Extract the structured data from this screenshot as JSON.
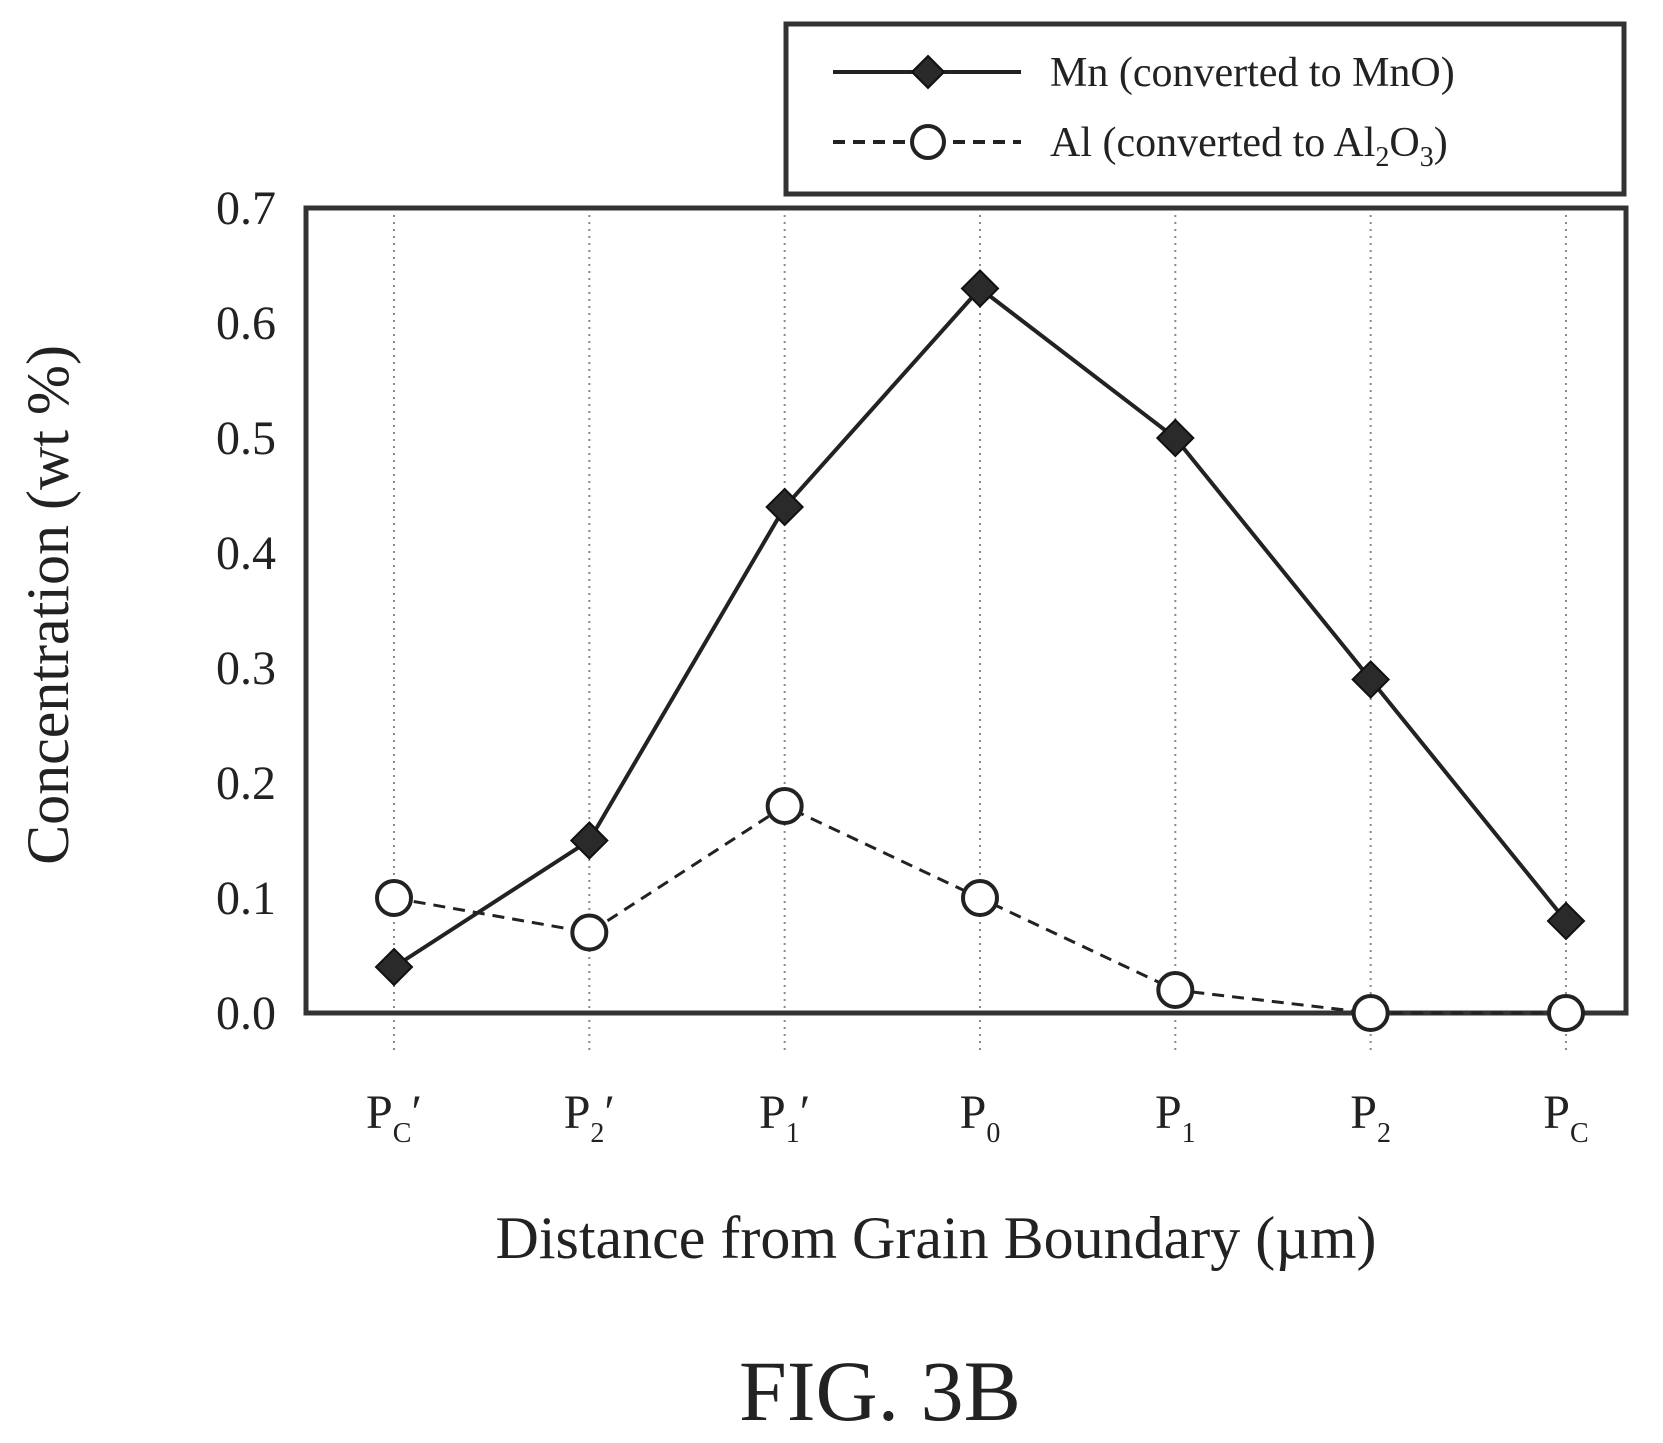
{
  "figure_label": "FIG. 3B",
  "chart_data": {
    "type": "line",
    "title": "",
    "xlabel": "Distance from Grain Boundary (µm)",
    "ylabel": "Concentration (wt %)",
    "categories": [
      {
        "base": "P",
        "sub": "C",
        "prime": "′"
      },
      {
        "base": "P",
        "sub": "2",
        "prime": "′"
      },
      {
        "base": "P",
        "sub": "1",
        "prime": "′"
      },
      {
        "base": "P",
        "sub": "0",
        "prime": ""
      },
      {
        "base": "P",
        "sub": "1",
        "prime": ""
      },
      {
        "base": "P",
        "sub": "2",
        "prime": ""
      },
      {
        "base": "P",
        "sub": "C",
        "prime": ""
      }
    ],
    "ylim": [
      0.0,
      0.7
    ],
    "yticks": [
      "0.0",
      "0.1",
      "0.2",
      "0.3",
      "0.4",
      "0.5",
      "0.6",
      "0.7"
    ],
    "grid": "vertical dotted lines at each category",
    "legend_position": "top-right",
    "series": [
      {
        "name": "Mn (converted to MnO)",
        "legend": {
          "before": "Mn (converted to MnO)",
          "sub1": "",
          "mid": "",
          "sub2": "",
          "after": ""
        },
        "values": [
          0.04,
          0.15,
          0.44,
          0.63,
          0.5,
          0.29,
          0.08
        ],
        "line_style": "solid",
        "marker": "filled-diamond",
        "color": "#222222"
      },
      {
        "name": "Al (converted to Al2O3)",
        "legend": {
          "before": "Al (converted to Al",
          "sub1": "2",
          "mid": "O",
          "sub2": "3",
          "after": ")"
        },
        "values": [
          0.1,
          0.07,
          0.18,
          0.1,
          0.02,
          0.0,
          0.0
        ],
        "line_style": "dashed",
        "marker": "open-circle",
        "color": "#222222"
      }
    ]
  }
}
